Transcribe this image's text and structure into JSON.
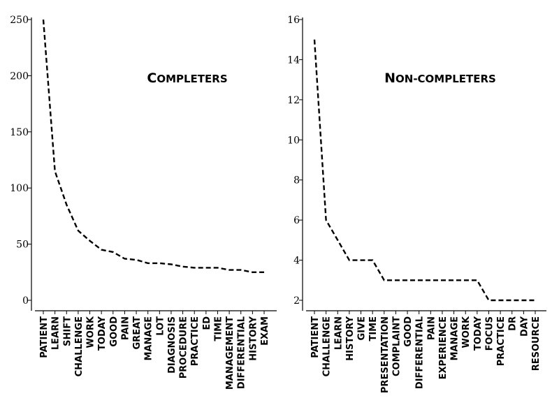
{
  "chart_data": [
    {
      "type": "line",
      "title": "Completers",
      "xlabel": "",
      "ylabel": "",
      "ylim": [
        0,
        250
      ],
      "yticks": [
        0,
        50,
        100,
        150,
        200,
        250
      ],
      "categories": [
        "PATIENT",
        "LEARN",
        "SHIFT",
        "CHALLENGE",
        "WORK",
        "TODAY",
        "GOOD",
        "PAIN",
        "GREAT",
        "MANAGE",
        "LOT",
        "DIAGNOSIS",
        "PROCEDURE",
        "PRACTICE",
        "ED",
        "TIME",
        "MANAGEMENT",
        "DIFFERENTIAL",
        "HISTORY",
        "EXAM"
      ],
      "values": [
        250,
        115,
        85,
        62,
        53,
        45,
        43,
        37,
        36,
        33,
        33,
        32,
        30,
        29,
        29,
        29,
        27,
        27,
        25,
        25
      ],
      "grid": false,
      "line_style": "dashed"
    },
    {
      "type": "line",
      "title": "Non-completers",
      "xlabel": "",
      "ylabel": "",
      "ylim": [
        2,
        16
      ],
      "yticks": [
        2,
        4,
        6,
        8,
        10,
        12,
        14,
        16
      ],
      "categories": [
        "PATIENT",
        "CHALLENGE",
        "LEARN",
        "HISTORY",
        "GIVE",
        "TIME",
        "PRESENTATION",
        "COMPLAINT",
        "GOOD",
        "DIFFERENTIAL",
        "PAIN",
        "EXPERIENCE",
        "MANAGE",
        "WORK",
        "TODAY",
        "FOCUS",
        "PRACTICE",
        "DR",
        "DAY",
        "RESOURCE"
      ],
      "values": [
        15,
        6,
        5,
        4,
        4,
        4,
        3,
        3,
        3,
        3,
        3,
        3,
        3,
        3,
        3,
        2,
        2,
        2,
        2,
        2
      ],
      "grid": false,
      "line_style": "dashed"
    }
  ]
}
